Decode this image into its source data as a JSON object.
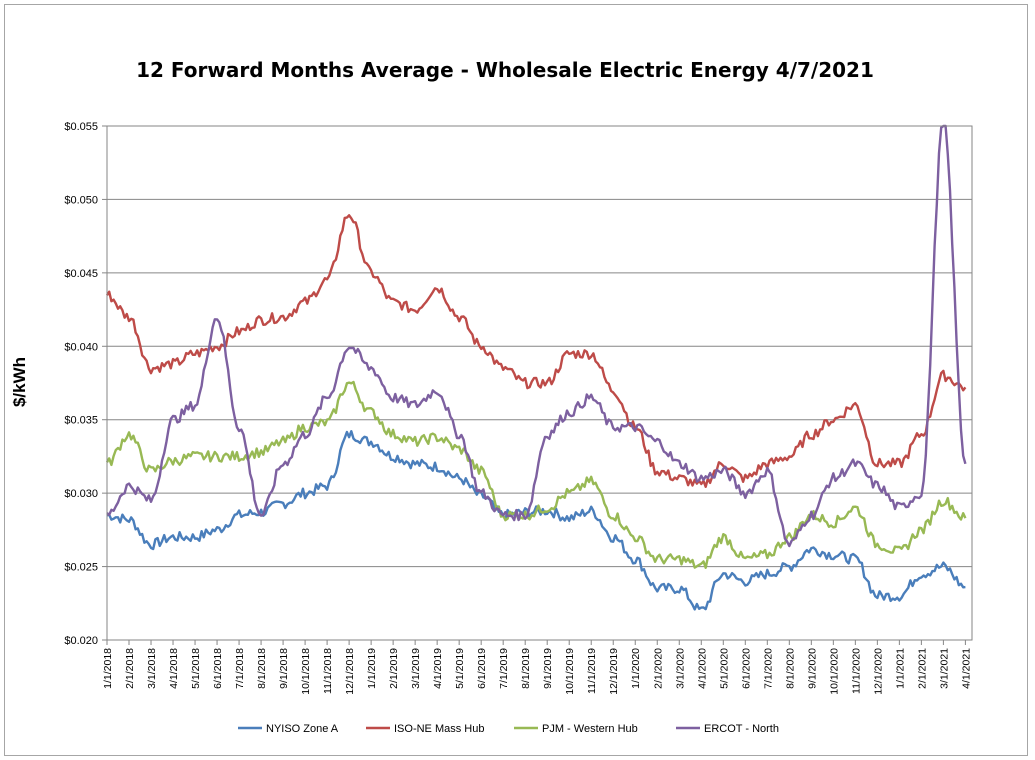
{
  "chart_data": {
    "type": "line",
    "title": "12 Forward Months Average - Wholesale Electric Energy 4/7/2021",
    "xlabel": "",
    "ylabel": "$/kWh",
    "ylim": [
      0.02,
      0.055
    ],
    "yticks": [
      "$0.020",
      "$0.025",
      "$0.030",
      "$0.035",
      "$0.040",
      "$0.045",
      "$0.050",
      "$0.055"
    ],
    "xticks": [
      "1/1/2018",
      "2/1/2018",
      "3/1/2018",
      "4/1/2018",
      "5/1/2018",
      "6/1/2018",
      "7/1/2018",
      "8/1/2018",
      "9/1/2018",
      "10/1/2018",
      "11/1/2018",
      "12/1/2018",
      "1/1/2019",
      "2/1/2019",
      "3/1/2019",
      "4/1/2019",
      "5/1/2019",
      "6/1/2019",
      "7/1/2019",
      "8/1/2019",
      "9/1/2019",
      "10/1/2019",
      "11/1/2019",
      "12/1/2019",
      "1/1/2020",
      "2/1/2020",
      "3/1/2020",
      "4/1/2020",
      "5/1/2020",
      "6/1/2020",
      "7/1/2020",
      "8/1/2020",
      "9/1/2020",
      "10/1/2020",
      "11/1/2020",
      "12/1/2020",
      "1/1/2021",
      "2/1/2021",
      "3/1/2021",
      "4/1/2021"
    ],
    "x": [
      "1/1/2018",
      "2/1/2018",
      "3/1/2018",
      "4/1/2018",
      "5/1/2018",
      "6/1/2018",
      "7/1/2018",
      "8/1/2018",
      "9/1/2018",
      "10/1/2018",
      "11/1/2018",
      "12/1/2018",
      "1/1/2019",
      "2/1/2019",
      "3/1/2019",
      "4/1/2019",
      "5/1/2019",
      "6/1/2019",
      "7/1/2019",
      "8/1/2019",
      "9/1/2019",
      "10/1/2019",
      "11/1/2019",
      "12/1/2019",
      "1/1/2020",
      "2/1/2020",
      "3/1/2020",
      "4/1/2020",
      "5/1/2020",
      "6/1/2020",
      "7/1/2020",
      "8/1/2020",
      "9/1/2020",
      "10/1/2020",
      "11/1/2020",
      "12/1/2020",
      "1/1/2021",
      "2/1/2021",
      "3/1/2021",
      "4/1/2021"
    ],
    "series": [
      {
        "name": "NYISO Zone A",
        "color": "#4a7ebb",
        "values": [
          0.0285,
          0.0282,
          0.0265,
          0.027,
          0.027,
          0.0275,
          0.0285,
          0.0287,
          0.0293,
          0.03,
          0.0305,
          0.034,
          0.0335,
          0.0325,
          0.032,
          0.0318,
          0.031,
          0.0298,
          0.0285,
          0.0287,
          0.0288,
          0.0283,
          0.0288,
          0.027,
          0.0255,
          0.0235,
          0.0235,
          0.022,
          0.0245,
          0.024,
          0.0245,
          0.025,
          0.0262,
          0.0258,
          0.0255,
          0.023,
          0.023,
          0.0245,
          0.025,
          0.0236
        ]
      },
      {
        "name": "ISO-NE Mass Hub",
        "color": "#be4b48",
        "values": [
          0.0435,
          0.042,
          0.0385,
          0.0388,
          0.0395,
          0.04,
          0.041,
          0.0418,
          0.042,
          0.043,
          0.0445,
          0.049,
          0.045,
          0.043,
          0.0425,
          0.044,
          0.042,
          0.04,
          0.0385,
          0.0375,
          0.0375,
          0.0395,
          0.0395,
          0.037,
          0.0345,
          0.0315,
          0.031,
          0.0305,
          0.032,
          0.031,
          0.032,
          0.0325,
          0.034,
          0.035,
          0.036,
          0.032,
          0.032,
          0.034,
          0.038,
          0.0372
        ]
      },
      {
        "name": "PJM - Western Hub",
        "color": "#98b954",
        "values": [
          0.032,
          0.034,
          0.0315,
          0.0322,
          0.0325,
          0.0325,
          0.0325,
          0.0328,
          0.0335,
          0.0345,
          0.0348,
          0.0375,
          0.0355,
          0.034,
          0.0335,
          0.0338,
          0.033,
          0.0315,
          0.0285,
          0.0285,
          0.029,
          0.03,
          0.0308,
          0.0285,
          0.027,
          0.0255,
          0.0255,
          0.025,
          0.027,
          0.0255,
          0.0258,
          0.027,
          0.0285,
          0.028,
          0.029,
          0.0265,
          0.026,
          0.0275,
          0.0295,
          0.0283
        ]
      },
      {
        "name": "ERCOT - North",
        "color": "#7d60a0",
        "values": [
          0.0285,
          0.0305,
          0.0295,
          0.035,
          0.036,
          0.042,
          0.0345,
          0.0285,
          0.032,
          0.034,
          0.0365,
          0.04,
          0.0385,
          0.0365,
          0.036,
          0.037,
          0.034,
          0.03,
          0.0285,
          0.0285,
          0.034,
          0.0355,
          0.0365,
          0.0345,
          0.0345,
          0.0335,
          0.032,
          0.031,
          0.0315,
          0.03,
          0.0315,
          0.0265,
          0.0285,
          0.031,
          0.032,
          0.0305,
          0.029,
          0.03,
          0.0555,
          0.032
        ]
      }
    ],
    "grid": true,
    "legend": "bottom"
  }
}
